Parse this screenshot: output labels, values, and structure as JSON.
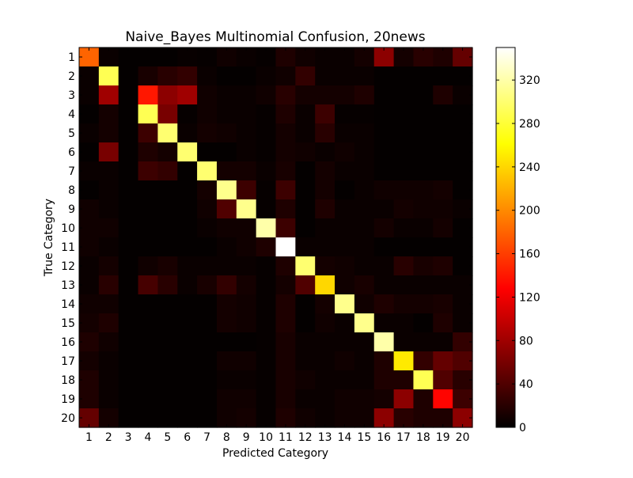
{
  "chart_data": {
    "type": "heatmap",
    "title": "Naive_Bayes Multinomial Confusion, 20news",
    "xlabel": "Predicted Category",
    "ylabel": "True Category",
    "x_categories": [
      "1",
      "2",
      "3",
      "4",
      "5",
      "6",
      "7",
      "8",
      "9",
      "10",
      "11",
      "12",
      "13",
      "14",
      "15",
      "16",
      "17",
      "18",
      "19",
      "20"
    ],
    "y_categories": [
      "1",
      "2",
      "3",
      "4",
      "5",
      "6",
      "7",
      "8",
      "9",
      "10",
      "11",
      "12",
      "13",
      "14",
      "15",
      "16",
      "17",
      "18",
      "19",
      "20"
    ],
    "colormap": "hot",
    "value_range": [
      0,
      350
    ],
    "colorbar_ticks": [
      0,
      40,
      80,
      120,
      160,
      200,
      240,
      280,
      320
    ],
    "values": [
      [
        180,
        5,
        2,
        2,
        2,
        4,
        3,
        8,
        5,
        3,
        15,
        8,
        5,
        5,
        10,
        70,
        10,
        20,
        15,
        50
      ],
      [
        5,
        290,
        2,
        12,
        20,
        25,
        5,
        2,
        2,
        5,
        8,
        25,
        5,
        5,
        5,
        2,
        2,
        2,
        2,
        2
      ],
      [
        5,
        80,
        2,
        140,
        70,
        80,
        8,
        5,
        5,
        8,
        20,
        10,
        10,
        10,
        15,
        2,
        2,
        2,
        15,
        5
      ],
      [
        2,
        10,
        2,
        290,
        60,
        3,
        8,
        5,
        5,
        3,
        15,
        5,
        30,
        3,
        3,
        2,
        2,
        2,
        2,
        2
      ],
      [
        5,
        10,
        2,
        30,
        300,
        5,
        10,
        8,
        5,
        3,
        10,
        5,
        20,
        5,
        5,
        2,
        2,
        2,
        2,
        2
      ],
      [
        2,
        60,
        2,
        15,
        10,
        300,
        2,
        2,
        5,
        3,
        10,
        8,
        5,
        8,
        5,
        2,
        2,
        2,
        2,
        2
      ],
      [
        5,
        5,
        2,
        30,
        25,
        2,
        300,
        10,
        10,
        5,
        12,
        2,
        10,
        5,
        5,
        2,
        2,
        2,
        2,
        2
      ],
      [
        2,
        5,
        2,
        2,
        2,
        2,
        10,
        310,
        30,
        3,
        30,
        2,
        10,
        2,
        5,
        8,
        8,
        8,
        10,
        2
      ],
      [
        8,
        5,
        2,
        2,
        2,
        2,
        8,
        40,
        310,
        3,
        15,
        2,
        15,
        5,
        5,
        5,
        10,
        8,
        8,
        5
      ],
      [
        8,
        8,
        2,
        2,
        2,
        2,
        5,
        8,
        8,
        320,
        30,
        2,
        5,
        5,
        5,
        10,
        5,
        5,
        10,
        2
      ],
      [
        8,
        5,
        2,
        2,
        2,
        2,
        2,
        5,
        8,
        15,
        350,
        5,
        5,
        5,
        5,
        2,
        2,
        2,
        2,
        2
      ],
      [
        5,
        10,
        2,
        8,
        12,
        5,
        5,
        5,
        5,
        3,
        15,
        300,
        10,
        8,
        5,
        5,
        20,
        12,
        15,
        2
      ],
      [
        5,
        20,
        2,
        35,
        20,
        5,
        12,
        25,
        10,
        3,
        10,
        40,
        240,
        8,
        12,
        5,
        5,
        5,
        5,
        5
      ],
      [
        8,
        8,
        2,
        2,
        2,
        2,
        2,
        10,
        8,
        3,
        15,
        2,
        10,
        310,
        8,
        15,
        10,
        10,
        12,
        5
      ],
      [
        10,
        15,
        2,
        2,
        2,
        2,
        2,
        10,
        8,
        3,
        15,
        2,
        8,
        5,
        310,
        5,
        5,
        2,
        15,
        5
      ],
      [
        15,
        8,
        2,
        2,
        2,
        2,
        2,
        2,
        2,
        3,
        12,
        5,
        5,
        5,
        5,
        320,
        5,
        5,
        5,
        25
      ],
      [
        10,
        5,
        2,
        2,
        2,
        2,
        2,
        8,
        8,
        3,
        12,
        5,
        5,
        8,
        5,
        15,
        250,
        25,
        50,
        40
      ],
      [
        15,
        5,
        2,
        2,
        2,
        2,
        2,
        5,
        5,
        3,
        12,
        8,
        5,
        5,
        5,
        15,
        15,
        290,
        40,
        20
      ],
      [
        15,
        5,
        2,
        2,
        2,
        2,
        2,
        8,
        8,
        3,
        12,
        5,
        5,
        8,
        8,
        10,
        70,
        15,
        130,
        30
      ],
      [
        50,
        10,
        2,
        2,
        2,
        2,
        2,
        8,
        10,
        3,
        15,
        8,
        5,
        8,
        8,
        70,
        20,
        15,
        15,
        70
      ]
    ]
  }
}
